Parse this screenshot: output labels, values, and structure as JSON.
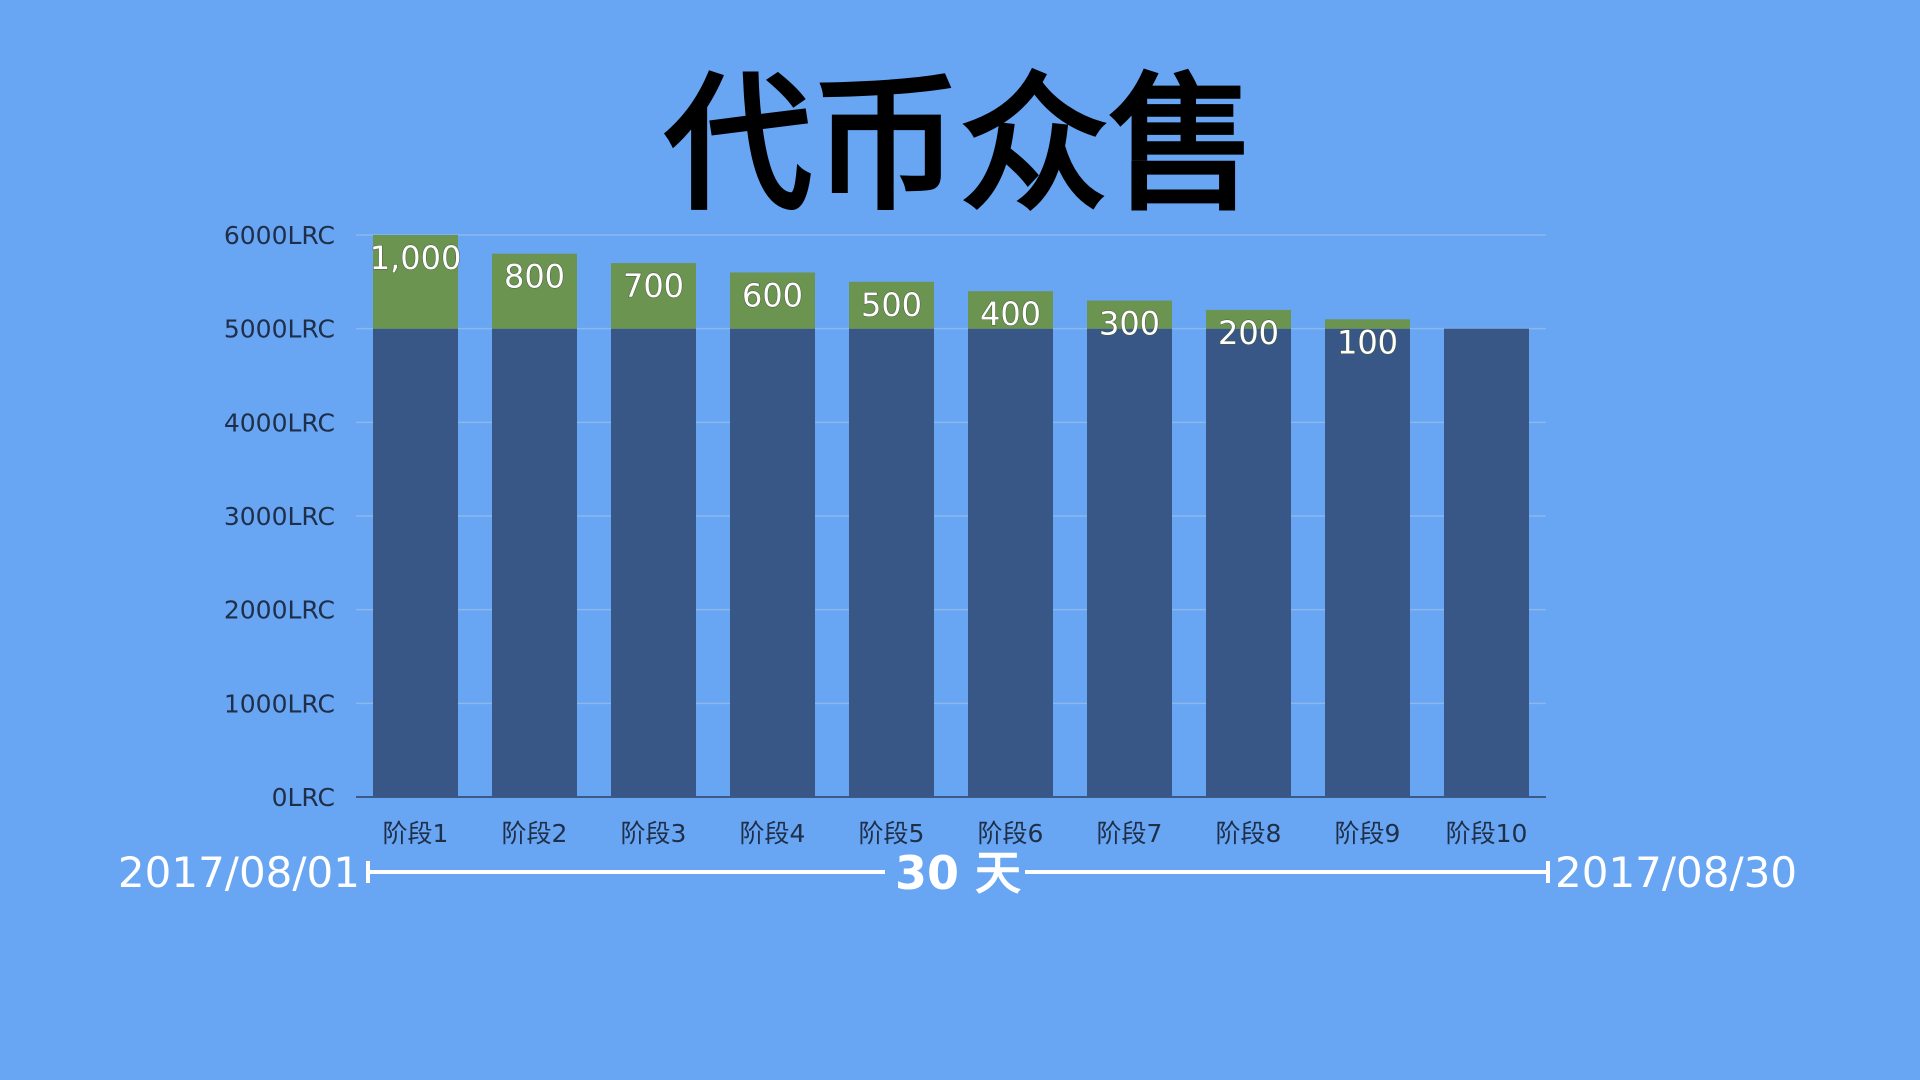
{
  "title": "代币众售",
  "colors": {
    "background": "#68a5f2",
    "base_bar": "#385686",
    "bonus_bar": "#6a9450",
    "grid": "#8bb7ee",
    "axis": "#3b5a86"
  },
  "chart_data": {
    "type": "bar",
    "stacked": true,
    "categories": [
      "阶段1",
      "阶段2",
      "阶段3",
      "阶段4",
      "阶段5",
      "阶段6",
      "阶段7",
      "阶段8",
      "阶段9",
      "阶段10"
    ],
    "series": [
      {
        "values": [
          5000,
          5000,
          5000,
          5000,
          5000,
          5000,
          5000,
          5000,
          5000,
          5000
        ]
      },
      {
        "values": [
          1000,
          800,
          700,
          600,
          500,
          400,
          300,
          200,
          100,
          0
        ]
      }
    ],
    "data_labels": [
      "1,000",
      "800",
      "700",
      "600",
      "500",
      "400",
      "300",
      "200",
      "100",
      ""
    ],
    "ylim": [
      0,
      6000
    ],
    "yticks": [
      0,
      1000,
      2000,
      3000,
      4000,
      5000,
      6000
    ],
    "ytick_labels": [
      "0LRC",
      "1000LRC",
      "2000LRC",
      "3000LRC",
      "4000LRC",
      "5000LRC",
      "6000LRC"
    ],
    "grid": true,
    "legend": "none"
  },
  "timeline": {
    "start_date": "2017/08/01",
    "end_date": "2017/08/30",
    "duration": "30 天"
  }
}
